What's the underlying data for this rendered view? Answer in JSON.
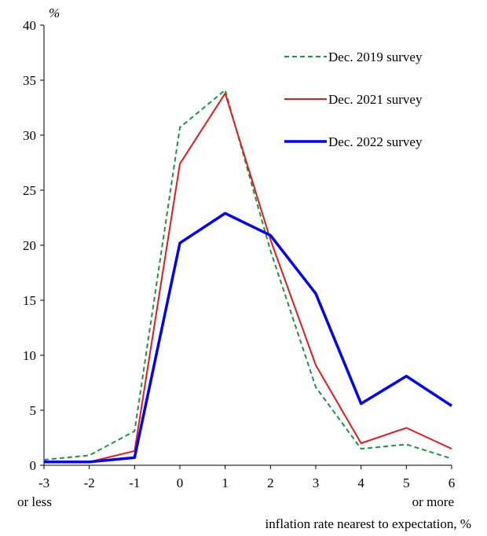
{
  "chart_data": {
    "type": "line",
    "title": "",
    "ylabel": "%",
    "xlabel": "inflation  rate nearest to expectation,  %",
    "x_tick_labels": [
      "-3",
      "-2",
      "-1",
      "0",
      "1",
      "2",
      "3",
      "4",
      "5",
      "6"
    ],
    "x_tick_sublabels": {
      "first": "or less",
      "last": "or more"
    },
    "x": [
      -3,
      -2,
      -1,
      0,
      1,
      2,
      3,
      4,
      5,
      6
    ],
    "xlim": [
      -3,
      6
    ],
    "ylim": [
      0,
      40
    ],
    "y_ticks": [
      0,
      5,
      10,
      15,
      20,
      25,
      30,
      35,
      40
    ],
    "grid": false,
    "legend_position": "top-right",
    "series": [
      {
        "name": "Dec. 2019 survey",
        "color": "#1a9641",
        "style": "dashed",
        "values": [
          0.5,
          0.9,
          3.1,
          30.7,
          34.1,
          19.5,
          7.1,
          1.5,
          1.9,
          0.6
        ]
      },
      {
        "name": "Dec. 2021 survey",
        "color": "#e41a1c",
        "style": "solid",
        "values": [
          0.3,
          0.3,
          1.3,
          27.4,
          33.8,
          20.5,
          9.1,
          2.0,
          3.4,
          1.5
        ]
      },
      {
        "name": "Dec. 2022 survey",
        "color": "#0000ff",
        "style": "solid-thick",
        "values": [
          0.3,
          0.3,
          0.7,
          20.2,
          22.9,
          20.9,
          15.6,
          5.6,
          8.1,
          5.4
        ]
      }
    ]
  }
}
